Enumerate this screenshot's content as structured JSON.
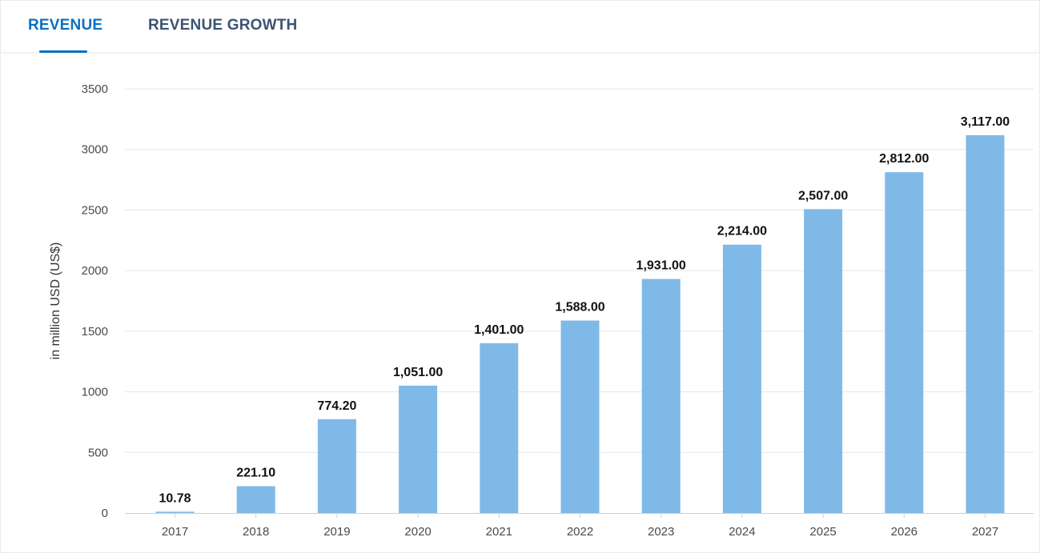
{
  "tabs": [
    {
      "label": "REVENUE",
      "active": true
    },
    {
      "label": "REVENUE GROWTH",
      "active": false
    }
  ],
  "colors": {
    "accent": "#0a6fc2",
    "bar": "#7fb9e8",
    "grid": "#e3e6ea"
  },
  "chart_data": {
    "type": "bar",
    "ylabel": "in million USD (US$)",
    "ylim": [
      0,
      3500
    ],
    "yticks": [
      0,
      500,
      1000,
      1500,
      2000,
      2500,
      3000,
      3500
    ],
    "grid": true,
    "categories": [
      "2017",
      "2018",
      "2019",
      "2020",
      "2021",
      "2022",
      "2023",
      "2024",
      "2025",
      "2026",
      "2027"
    ],
    "values": [
      10.78,
      221.1,
      774.2,
      1051,
      1401,
      1588,
      1931,
      2214,
      2507,
      2812,
      3117
    ],
    "data_labels": [
      "10.78",
      "221.10",
      "774.20",
      "1,051.00",
      "1,401.00",
      "1,588.00",
      "1,931.00",
      "2,214.00",
      "2,507.00",
      "2,812.00",
      "3,117.00"
    ]
  }
}
